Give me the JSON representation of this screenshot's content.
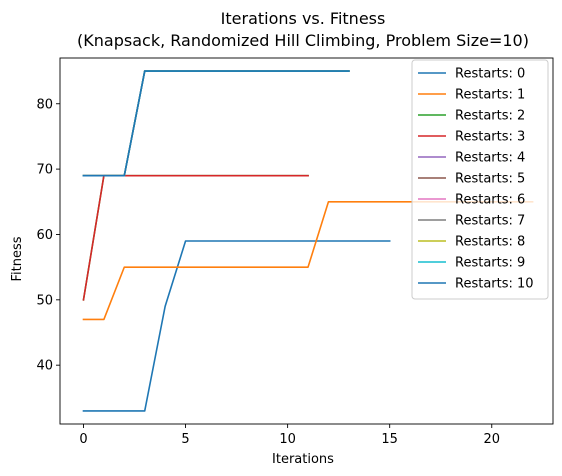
{
  "chart_data": {
    "type": "line",
    "title": "Iterations vs. Fitness",
    "subtitle": "(Knapsack, Randomized Hill Climbing, Problem Size=10)",
    "xlabel": "Iterations",
    "ylabel": "Fitness",
    "xlim": [
      -1.15,
      23
    ],
    "ylim": [
      31,
      87
    ],
    "xticks": [
      0,
      5,
      10,
      15,
      20
    ],
    "yticks": [
      40,
      50,
      60,
      70,
      80
    ],
    "grid": false,
    "legend_position": "top-right",
    "series": [
      {
        "name": "Restarts: 0",
        "color": "#1f77b4",
        "x": [
          0,
          1,
          2,
          3,
          4,
          5,
          6,
          7,
          8,
          9,
          10,
          11,
          12,
          13,
          14,
          15
        ],
        "y": [
          33,
          33,
          33,
          33,
          49,
          59,
          59,
          59,
          59,
          59,
          59,
          59,
          59,
          59,
          59,
          59
        ]
      },
      {
        "name": "Restarts: 1",
        "color": "#ff7f0e",
        "x": [
          0,
          1,
          2,
          3,
          4,
          5,
          6,
          7,
          8,
          9,
          10,
          11,
          12,
          13,
          14,
          15,
          16,
          17,
          18,
          19,
          20,
          21,
          22
        ],
        "y": [
          47,
          47,
          55,
          55,
          55,
          55,
          55,
          55,
          55,
          55,
          55,
          55,
          65,
          65,
          65,
          65,
          65,
          65,
          65,
          65,
          65,
          65,
          65
        ]
      },
      {
        "name": "Restarts: 2",
        "color": "#2ca02c",
        "x": [
          0,
          1,
          2,
          3,
          4,
          5,
          6,
          7,
          8,
          9,
          10,
          11
        ],
        "y": [
          50,
          69,
          69,
          69,
          69,
          69,
          69,
          69,
          69,
          69,
          69,
          69
        ]
      },
      {
        "name": "Restarts: 3",
        "color": "#d62728",
        "x": [
          0,
          1,
          2,
          3,
          4,
          5,
          6,
          7,
          8,
          9,
          10,
          11
        ],
        "y": [
          50,
          69,
          69,
          69,
          69,
          69,
          69,
          69,
          69,
          69,
          69,
          69
        ]
      },
      {
        "name": "Restarts: 4",
        "color": "#9467bd",
        "x": [
          0,
          1,
          2,
          3,
          4,
          5,
          6,
          7,
          8,
          9,
          10,
          11,
          12,
          13
        ],
        "y": [
          69,
          69,
          69,
          85,
          85,
          85,
          85,
          85,
          85,
          85,
          85,
          85,
          85,
          85
        ]
      },
      {
        "name": "Restarts: 5",
        "color": "#8c564b",
        "x": [
          0,
          1,
          2,
          3,
          4,
          5,
          6,
          7,
          8,
          9,
          10,
          11,
          12,
          13
        ],
        "y": [
          69,
          69,
          69,
          85,
          85,
          85,
          85,
          85,
          85,
          85,
          85,
          85,
          85,
          85
        ]
      },
      {
        "name": "Restarts: 6",
        "color": "#e377c2",
        "x": [
          0,
          1,
          2,
          3,
          4,
          5,
          6,
          7,
          8,
          9,
          10,
          11,
          12,
          13
        ],
        "y": [
          69,
          69,
          69,
          85,
          85,
          85,
          85,
          85,
          85,
          85,
          85,
          85,
          85,
          85
        ]
      },
      {
        "name": "Restarts: 7",
        "color": "#7f7f7f",
        "x": [
          0,
          1,
          2,
          3,
          4,
          5,
          6,
          7,
          8,
          9,
          10,
          11,
          12,
          13
        ],
        "y": [
          69,
          69,
          69,
          85,
          85,
          85,
          85,
          85,
          85,
          85,
          85,
          85,
          85,
          85
        ]
      },
      {
        "name": "Restarts: 8",
        "color": "#bcbd22",
        "x": [
          0,
          1,
          2,
          3,
          4,
          5,
          6,
          7,
          8,
          9,
          10,
          11,
          12,
          13
        ],
        "y": [
          69,
          69,
          69,
          85,
          85,
          85,
          85,
          85,
          85,
          85,
          85,
          85,
          85,
          85
        ]
      },
      {
        "name": "Restarts: 9",
        "color": "#17becf",
        "x": [
          0,
          1,
          2,
          3,
          4,
          5,
          6,
          7,
          8,
          9,
          10,
          11,
          12,
          13
        ],
        "y": [
          69,
          69,
          69,
          85,
          85,
          85,
          85,
          85,
          85,
          85,
          85,
          85,
          85,
          85
        ]
      },
      {
        "name": "Restarts: 10",
        "color": "#1f77b4",
        "x": [
          0,
          1,
          2,
          3,
          4,
          5,
          6,
          7,
          8,
          9,
          10,
          11,
          12,
          13
        ],
        "y": [
          69,
          69,
          69,
          85,
          85,
          85,
          85,
          85,
          85,
          85,
          85,
          85,
          85,
          85
        ]
      }
    ]
  }
}
